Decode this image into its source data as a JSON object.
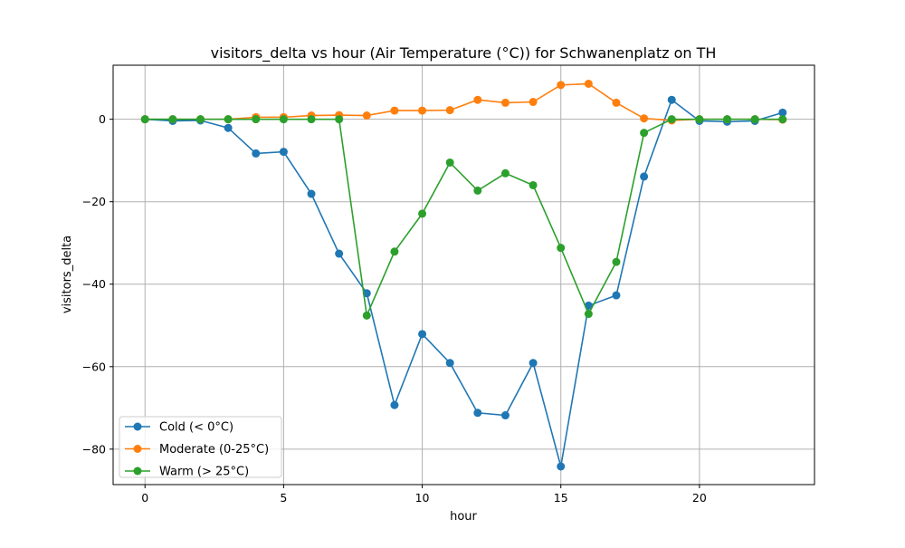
{
  "chart_data": {
    "type": "line",
    "title": "visitors_delta vs hour (Air Temperature (°C)) for Schwanenplatz on TH",
    "xlabel": "hour",
    "ylabel": "visitors_delta",
    "xlim": [
      -1.15,
      24.15
    ],
    "ylim": [
      -88.6,
      13.1
    ],
    "xticks": [
      0,
      5,
      10,
      15,
      20
    ],
    "yticks": [
      -80,
      -60,
      -40,
      -20,
      0
    ],
    "grid": true,
    "legend_position": "lower-left",
    "x": [
      0,
      1,
      2,
      3,
      4,
      5,
      6,
      7,
      8,
      9,
      10,
      11,
      12,
      13,
      14,
      15,
      16,
      17,
      18,
      19,
      20,
      21,
      22,
      23
    ],
    "series": [
      {
        "name": "Cold (< 0°C)",
        "color": "#1f77b4",
        "values": [
          0,
          -0.4,
          -0.3,
          -2.1,
          -8.3,
          -7.9,
          -18.1,
          -32.6,
          -42.2,
          -69.3,
          -52.1,
          -59.1,
          -71.2,
          -71.8,
          -59.1,
          -84.2,
          -45.2,
          -42.7,
          -13.9,
          4.7,
          -0.4,
          -0.6,
          -0.4,
          1.6
        ]
      },
      {
        "name": "Moderate (0-25°C)",
        "color": "#ff7f0e",
        "values": [
          0,
          0,
          0,
          0,
          0.5,
          0.5,
          0.9,
          1.0,
          0.9,
          2.1,
          2.1,
          2.2,
          4.7,
          4.0,
          4.2,
          8.3,
          8.6,
          4.0,
          0.2,
          -0.3,
          0,
          0,
          0,
          -0.1
        ]
      },
      {
        "name": "Warm (> 25°C)",
        "color": "#2ca02c",
        "values": [
          0,
          0,
          0,
          0,
          0,
          0,
          0,
          0,
          -47.6,
          -32.1,
          -22.9,
          -10.5,
          -17.3,
          -13.1,
          -16.0,
          -31.2,
          -47.2,
          -34.6,
          -3.3,
          0,
          0,
          0,
          0,
          0
        ]
      }
    ]
  }
}
